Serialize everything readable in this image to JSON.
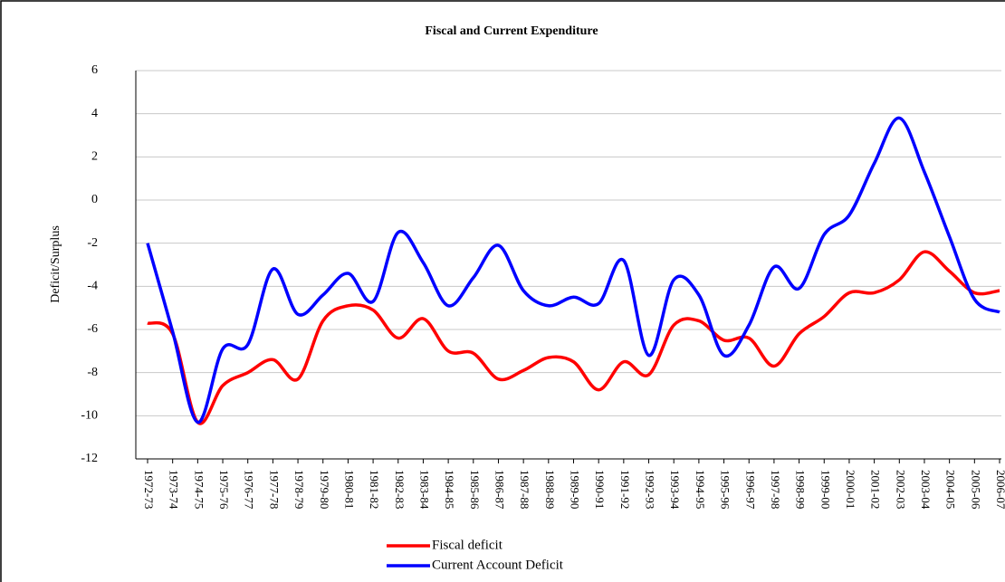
{
  "chart_data": {
    "type": "line",
    "title": "Fiscal and Current Expenditure",
    "y_label": "Deficit/Surplus",
    "categories": [
      "1972-73",
      "1973-74",
      "1974-75",
      "1975-76",
      "1976-77",
      "1977-78",
      "1978-79",
      "1979-80",
      "1980-81",
      "1981-82",
      "1982-83",
      "1983-84",
      "1984-85",
      "1985-86",
      "1986-87",
      "1987-88",
      "1988-89",
      "1989-90",
      "1990-91",
      "1991-92",
      "1992-93",
      "1993-94",
      "1994-95",
      "1995-96",
      "1996-97",
      "1997-98",
      "1998-99",
      "1999-00",
      "2000-01",
      "2001-02",
      "2002-03",
      "2003-04",
      "2004-05",
      "2005-06",
      "2006-07"
    ],
    "series": [
      {
        "name": "Fiscal deficit",
        "color": "#ff0000",
        "values": [
          -5.7,
          -6.2,
          -10.3,
          -8.6,
          -8.0,
          -7.4,
          -8.3,
          -5.6,
          -4.9,
          -5.1,
          -6.4,
          -5.5,
          -7.0,
          -7.1,
          -8.3,
          -7.9,
          -7.3,
          -7.5,
          -8.8,
          -7.5,
          -8.1,
          -5.8,
          -5.6,
          -6.5,
          -6.4,
          -7.7,
          -6.2,
          -5.4,
          -4.3,
          -4.3,
          -3.7,
          -2.4,
          -3.3,
          -4.3,
          -4.2
        ]
      },
      {
        "name": "Current Account Deficit",
        "color": "#0000ff",
        "values": [
          -2.0,
          -6.1,
          -10.3,
          -6.9,
          -6.7,
          -3.2,
          -5.3,
          -4.4,
          -3.4,
          -4.7,
          -1.5,
          -2.9,
          -4.9,
          -3.6,
          -2.1,
          -4.2,
          -4.9,
          -4.5,
          -4.8,
          -2.8,
          -7.2,
          -3.7,
          -4.4,
          -7.2,
          -5.8,
          -3.1,
          -4.1,
          -1.6,
          -0.7,
          1.7,
          3.8,
          1.3,
          -1.7,
          -4.6,
          -5.2
        ]
      }
    ],
    "ylim": [
      -12,
      6
    ],
    "yticks": [
      -12,
      -10,
      -8,
      -6,
      -4,
      -2,
      0,
      2,
      4,
      6
    ],
    "grid": true,
    "legend": "bottom"
  }
}
